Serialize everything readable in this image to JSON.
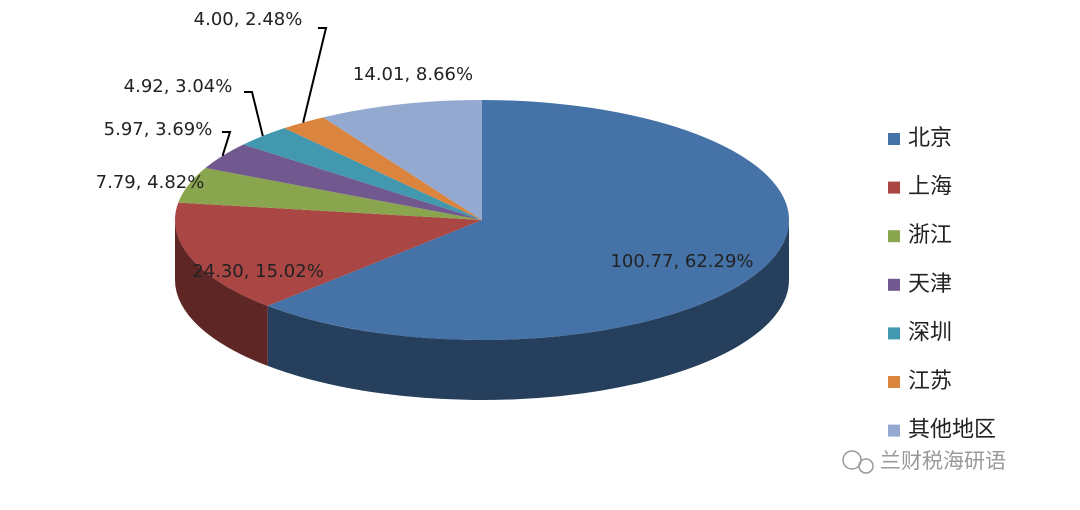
{
  "chart_data": {
    "type": "pie3d",
    "categories": [
      "北京",
      "上海",
      "浙江",
      "天津",
      "深圳",
      "江苏",
      "其他地区"
    ],
    "values": [
      100.77,
      24.3,
      7.79,
      5.97,
      4.92,
      4.0,
      14.01
    ],
    "value_labels": [
      "100.77, 62.29%",
      "24.30, 15.02%",
      "7.79, 4.82%",
      "5.97, 3.69%",
      "4.92, 3.04%",
      "4.00, 2.48%",
      "14.01, 8.66%"
    ],
    "colors": [
      "#4572a7",
      "#aa4643",
      "#89a54e",
      "#71588f",
      "#4198af",
      "#db843d",
      "#93a9cf"
    ],
    "legend": "right",
    "watermark": "兰财税海研语"
  }
}
